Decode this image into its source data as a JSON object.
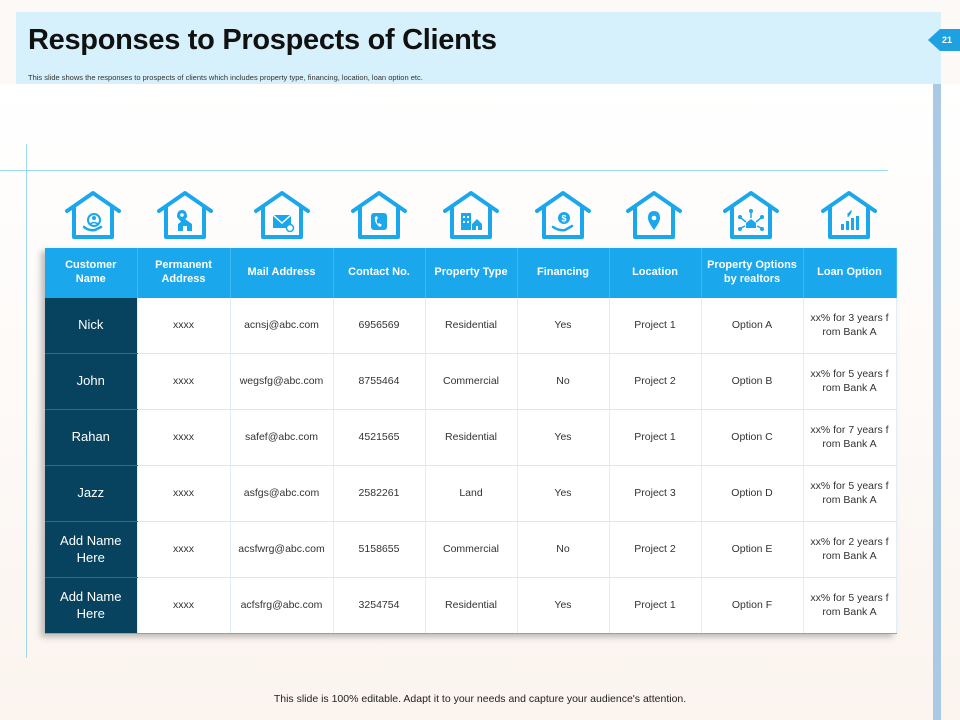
{
  "slide": {
    "title": "Responses to Prospects of Clients",
    "subtitle": "This slide shows the responses to prospects of clients which includes property type, financing, location, loan option etc.",
    "page_number": "21",
    "footer": "This slide is 100% editable. Adapt it to your needs and capture your audience's attention."
  },
  "colors": {
    "header_bg": "#d6f1fb",
    "accent": "#1aa7ec",
    "name_column": "#07435e"
  },
  "icons": [
    "customer-icon",
    "address-icon",
    "mail-icon",
    "phone-icon",
    "property-icon",
    "financing-icon",
    "location-icon",
    "options-icon",
    "loan-icon"
  ],
  "table": {
    "headers": [
      "Customer Name",
      "Permanent Address",
      "Mail Address",
      "Contact No.",
      "Property Type",
      "Financing",
      "Location",
      "Property Options by realtors",
      "Loan Option"
    ],
    "rows": [
      [
        "Nick",
        "xxxx",
        "acnsj@abc.com",
        "6956569",
        "Residential",
        "Yes",
        "Project 1",
        "Option A",
        "xx% for 3 years from Bank A"
      ],
      [
        "John",
        "xxxx",
        "wegsfg@abc.com",
        "8755464",
        "Commercial",
        "No",
        "Project 2",
        "Option B",
        "xx% for 5 years from Bank A"
      ],
      [
        "Rahan",
        "xxxx",
        "safef@abc.com",
        "4521565",
        "Residential",
        "Yes",
        "Project 1",
        "Option C",
        "xx% for 7 years from Bank A"
      ],
      [
        "Jazz",
        "xxxx",
        "asfgs@abc.com",
        "2582261",
        "Land",
        "Yes",
        "Project 3",
        "Option D",
        "xx% for 5 years from Bank A"
      ],
      [
        "Add Name Here",
        "xxxx",
        "acsfwrg@abc.com",
        "5158655",
        "Commercial",
        "No",
        "Project 2",
        "Option E",
        "xx% for 2 years from Bank A"
      ],
      [
        "Add Name Here",
        "xxxx",
        "acfsfrg@abc.com",
        "3254754",
        "Residential",
        "Yes",
        "Project 1",
        "Option F",
        "xx% for 5 years from Bank A"
      ]
    ]
  }
}
